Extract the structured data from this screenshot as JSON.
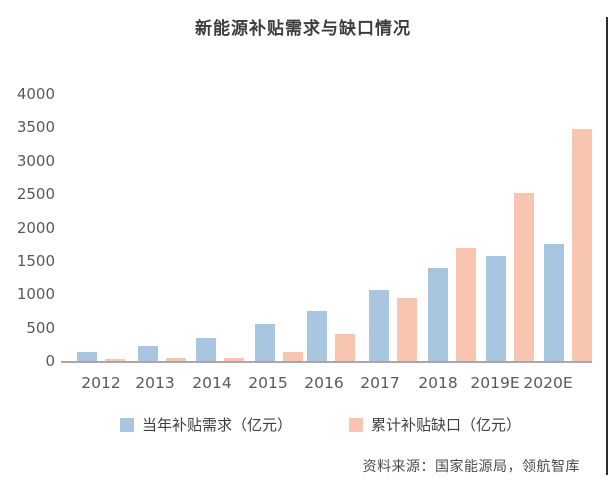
{
  "title": "新能源补贴需求与缺口情况",
  "source_note": "资料来源：国家能源局，领航智库",
  "colors": {
    "demand_bar": "#a9c6e1",
    "gap_bar": "#f8c6b0",
    "axis_line": "#a8a8a8",
    "title_text": "#3d3d3d",
    "axis_text": "#595959",
    "legend_text": "#3f3f3f",
    "source_text": "#4c4c4c",
    "border_line": "#2e2e2e",
    "background": "#ffffff"
  },
  "legend": [
    {
      "label": "当年补贴需求（亿元）",
      "series_key": "demand"
    },
    {
      "label": "累计补贴缺口（亿元）",
      "series_key": "gap"
    }
  ],
  "chart_data": {
    "type": "bar",
    "title": "新能源补贴需求与缺口情况",
    "categories": [
      "2012",
      "2013",
      "2014",
      "2015",
      "2016",
      "2017",
      "2018",
      "2019E",
      "2020E"
    ],
    "series": [
      {
        "name": "当年补贴需求（亿元）",
        "key": "demand",
        "color": "#a9c6e1",
        "values": [
          130,
          220,
          350,
          560,
          750,
          1070,
          1400,
          1580,
          1760
        ]
      },
      {
        "name": "累计补贴缺口（亿元）",
        "key": "gap",
        "color": "#f8c6b0",
        "values": [
          30,
          40,
          50,
          130,
          410,
          950,
          1700,
          2520,
          3470
        ]
      }
    ],
    "xlabel": "",
    "ylabel": "",
    "ylim": [
      0,
      4000
    ],
    "y_ticks": [
      0,
      500,
      1000,
      1500,
      2000,
      2500,
      3000,
      3500,
      4000
    ],
    "grid": false,
    "legend_position": "bottom",
    "source": "资料来源：国家能源局，领航智库"
  }
}
